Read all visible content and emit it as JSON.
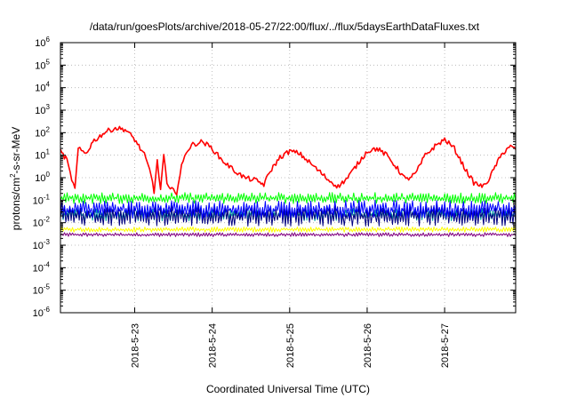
{
  "chart_data": {
    "type": "line",
    "title": "/data/run/goesPlots/archive/2018-05-27/22:00/flux/../flux/5daysEarthDataFluxes.txt",
    "xlabel": "Coordinated Universal Time (UTC)",
    "ylabel": {
      "prefix": "protons/cm",
      "sup": "2",
      "suffix": "-s-sr-MeV"
    },
    "scale_y": "log",
    "grid": true,
    "legend": "none",
    "xlim": [
      "2018-05-22T01:00",
      "2018-05-27T22:00"
    ],
    "ylim": [
      1e-06,
      1000000
    ],
    "x_ticks": [
      {
        "at": "2018-05-23T00:00",
        "label": "2018-5-23"
      },
      {
        "at": "2018-05-24T00:00",
        "label": "2018-5-24"
      },
      {
        "at": "2018-05-25T00:00",
        "label": "2018-5-25"
      },
      {
        "at": "2018-05-26T00:00",
        "label": "2018-5-26"
      },
      {
        "at": "2018-05-27T00:00",
        "label": "2018-5-27"
      }
    ],
    "y_ticks": [
      {
        "value": 1e-06,
        "base": "10",
        "exp": "-6"
      },
      {
        "value": 1e-05,
        "base": "10",
        "exp": "-5"
      },
      {
        "value": 0.0001,
        "base": "10",
        "exp": "-4"
      },
      {
        "value": 0.001,
        "base": "10",
        "exp": "-3"
      },
      {
        "value": 0.01,
        "base": "10",
        "exp": "-2"
      },
      {
        "value": 0.1,
        "base": "10",
        "exp": "-1"
      },
      {
        "value": 1,
        "base": "10",
        "exp": "0"
      },
      {
        "value": 10,
        "base": "10",
        "exp": "1"
      },
      {
        "value": 100,
        "base": "10",
        "exp": "2"
      },
      {
        "value": 1000,
        "base": "10",
        "exp": "3"
      },
      {
        "value": 10000,
        "base": "10",
        "exp": "4"
      },
      {
        "value": 100000,
        "base": "10",
        "exp": "5"
      },
      {
        "value": 1000000,
        "base": "10",
        "exp": "6"
      }
    ],
    "series": [
      {
        "color": "#800080",
        "band": [
          0.0024,
          0.0036
        ],
        "x": [
          "2018-05-22T01:00",
          "2018-05-23T00:00",
          "2018-05-24T00:00",
          "2018-05-25T00:00",
          "2018-05-26T00:00",
          "2018-05-27T00:00",
          "2018-05-27T22:00"
        ],
        "y": [
          0.0029,
          0.0029,
          0.003,
          0.0029,
          0.003,
          0.0029,
          0.003
        ]
      },
      {
        "color": "#ffff00",
        "band": [
          0.0038,
          0.0065
        ],
        "x": [
          "2018-05-22T01:00",
          "2018-05-23T00:00",
          "2018-05-24T00:00",
          "2018-05-25T00:00",
          "2018-05-26T00:00",
          "2018-05-27T00:00",
          "2018-05-27T22:00"
        ],
        "y": [
          0.005,
          0.005,
          0.005,
          0.005,
          0.005,
          0.005,
          0.005
        ]
      },
      {
        "color": "#00a0a0",
        "band": [
          0.012,
          0.045
        ],
        "x": [
          "2018-05-22T01:00",
          "2018-05-23T00:00",
          "2018-05-24T00:00",
          "2018-05-25T00:00",
          "2018-05-26T00:00",
          "2018-05-27T00:00",
          "2018-05-27T22:00"
        ],
        "y": [
          0.025,
          0.025,
          0.025,
          0.025,
          0.025,
          0.025,
          0.025
        ]
      },
      {
        "color": "#000080",
        "band": [
          0.007,
          0.06
        ],
        "x": [
          "2018-05-22T01:00",
          "2018-05-23T00:00",
          "2018-05-24T00:00",
          "2018-05-25T00:00",
          "2018-05-26T00:00",
          "2018-05-27T00:00",
          "2018-05-27T22:00"
        ],
        "y": [
          0.02,
          0.02,
          0.02,
          0.02,
          0.02,
          0.02,
          0.02
        ]
      },
      {
        "color": "#0000ff",
        "band": [
          0.015,
          0.1
        ],
        "x": [
          "2018-05-22T01:00",
          "2018-05-23T00:00",
          "2018-05-24T00:00",
          "2018-05-25T00:00",
          "2018-05-26T00:00",
          "2018-05-27T00:00",
          "2018-05-27T22:00"
        ],
        "y": [
          0.045,
          0.045,
          0.045,
          0.045,
          0.045,
          0.045,
          0.045
        ]
      },
      {
        "color": "#00ff00",
        "band": [
          0.07,
          0.22
        ],
        "x": [
          "2018-05-22T01:00",
          "2018-05-23T00:00",
          "2018-05-24T00:00",
          "2018-05-25T00:00",
          "2018-05-26T00:00",
          "2018-05-27T00:00",
          "2018-05-27T22:00"
        ],
        "y": [
          0.12,
          0.12,
          0.12,
          0.12,
          0.12,
          0.12,
          0.12
        ]
      },
      {
        "color": "#ff0000",
        "x": [
          "2018-05-22T01:00",
          "2018-05-22T03:00",
          "2018-05-22T04:00",
          "2018-05-22T05:30",
          "2018-05-22T06:30",
          "2018-05-22T07:30",
          "2018-05-22T09:00",
          "2018-05-22T11:00",
          "2018-05-22T15:00",
          "2018-05-22T18:00",
          "2018-05-22T21:00",
          "2018-05-23T00:00",
          "2018-05-23T03:00",
          "2018-05-23T05:00",
          "2018-05-23T06:00",
          "2018-05-23T07:00",
          "2018-05-23T08:00",
          "2018-05-23T09:00",
          "2018-05-23T10:00",
          "2018-05-23T11:00",
          "2018-05-23T12:00",
          "2018-05-23T13:00",
          "2018-05-23T14:30",
          "2018-05-23T16:00",
          "2018-05-23T18:00",
          "2018-05-23T21:00",
          "2018-05-24T00:00",
          "2018-05-24T03:00",
          "2018-05-24T07:00",
          "2018-05-24T10:00",
          "2018-05-24T13:00",
          "2018-05-24T16:00",
          "2018-05-24T18:00",
          "2018-05-24T21:00",
          "2018-05-25T00:00",
          "2018-05-25T03:00",
          "2018-05-25T06:00",
          "2018-05-25T09:00",
          "2018-05-25T12:00",
          "2018-05-25T15:00",
          "2018-05-25T18:00",
          "2018-05-25T21:00",
          "2018-05-26T00:00",
          "2018-05-26T03:00",
          "2018-05-26T06:00",
          "2018-05-26T09:00",
          "2018-05-26T12:00",
          "2018-05-26T15:00",
          "2018-05-26T18:00",
          "2018-05-26T21:00",
          "2018-05-27T00:00",
          "2018-05-27T03:00",
          "2018-05-27T06:00",
          "2018-05-27T09:00",
          "2018-05-27T12:00",
          "2018-05-27T14:00",
          "2018-05-27T16:00",
          "2018-05-27T18:00",
          "2018-05-27T20:00",
          "2018-05-27T22:00"
        ],
        "y": [
          15,
          6,
          1.5,
          0.3,
          20,
          15,
          12,
          40,
          110,
          160,
          140,
          50,
          10,
          1.5,
          0.25,
          5,
          0.3,
          10,
          0.5,
          0.25,
          0.4,
          0.2,
          3,
          15,
          30,
          40,
          20,
          6,
          2,
          1,
          0.8,
          0.5,
          2,
          8,
          15,
          12,
          5,
          2,
          0.8,
          0.4,
          1,
          4,
          15,
          20,
          10,
          3,
          0.8,
          1.5,
          10,
          25,
          50,
          20,
          3,
          0.6,
          0.4,
          1,
          4,
          12,
          25,
          18
        ]
      }
    ]
  }
}
